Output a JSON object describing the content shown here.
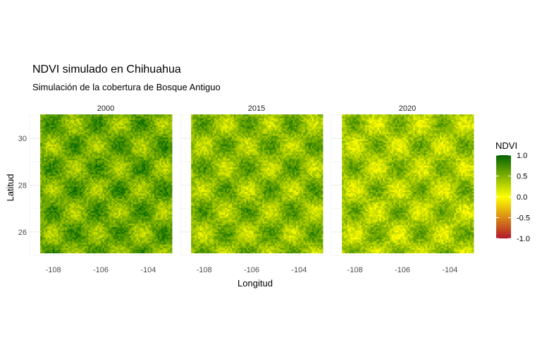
{
  "chart_data": {
    "type": "heatmap",
    "title": "NDVI simulado en Chihuahua",
    "subtitle": "Simulación de la cobertura de Bosque Antiguo",
    "xlabel": "Longitud",
    "ylabel": "Latitud",
    "xlim": [
      -109.0,
      -103.0
    ],
    "ylim": [
      25.0,
      31.0
    ],
    "x_ticks": [
      -108,
      -106,
      -104
    ],
    "y_ticks": [
      26,
      28,
      30
    ],
    "grid": true,
    "facets": [
      {
        "label": "2000",
        "mean_ndvi": 0.55,
        "phase_x": 0.0,
        "phase_y": 0.0
      },
      {
        "label": "2015",
        "mean_ndvi": 0.45,
        "phase_x": 0.0,
        "phase_y": 0.0
      },
      {
        "label": "2020",
        "mean_ndvi": 0.35,
        "phase_x": 0.0,
        "phase_y": 0.0
      }
    ],
    "legend": {
      "title": "NDVI",
      "position": "right",
      "ticks": [
        1.0,
        0.5,
        0.0,
        -0.5,
        -1.0
      ],
      "tick_labels": [
        "1.0",
        "0.5",
        "0.0",
        "-0.5",
        "-1.0"
      ],
      "colors": [
        {
          "value": -1.0,
          "color": "#b2182b"
        },
        {
          "value": 0.0,
          "color": "#ffff00"
        },
        {
          "value": 1.0,
          "color": "#006400"
        }
      ]
    }
  }
}
